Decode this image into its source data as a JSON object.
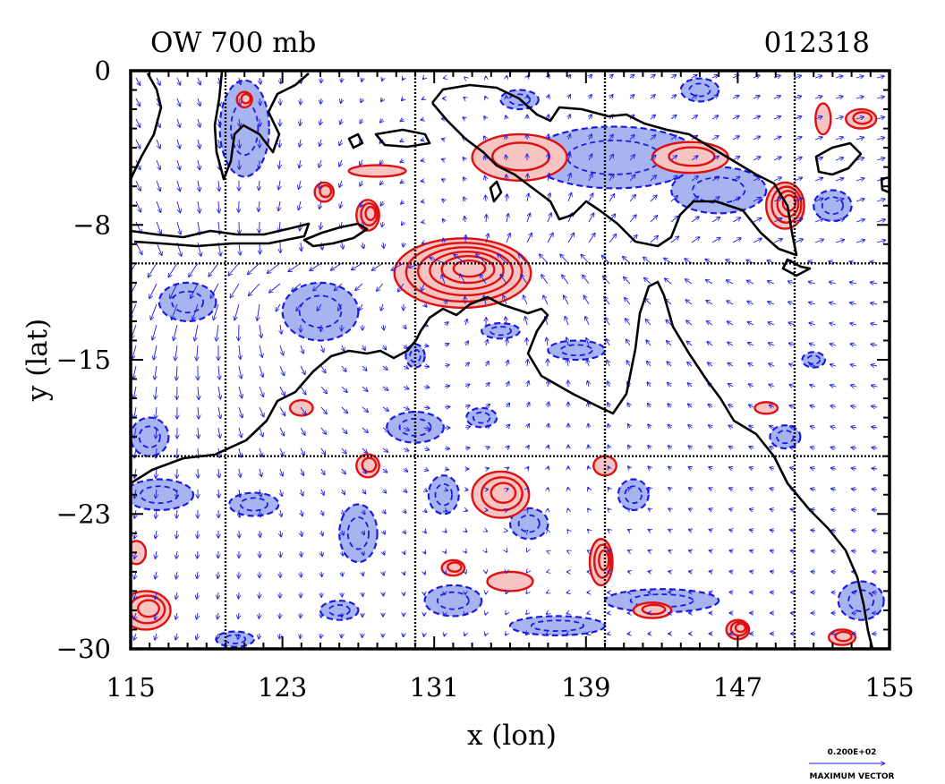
{
  "chart_data": {
    "type": "contour",
    "title": "OW 700 mb",
    "time_label": "012318",
    "xlabel": "x (lon)",
    "ylabel": "y (lat)",
    "xlim": [
      115,
      155
    ],
    "ylim": [
      -30,
      0
    ],
    "x_ticks": [
      "115",
      "123",
      "131",
      "139",
      "147",
      "155"
    ],
    "x_tick_values": [
      115,
      123,
      131,
      139,
      147,
      155
    ],
    "y_ticks": [
      "0",
      "−8",
      "−15",
      "−23",
      "−30"
    ],
    "y_tick_values": [
      0,
      -8,
      -15,
      -23,
      -30
    ],
    "grid_lon": [
      120,
      130,
      140,
      150
    ],
    "grid_lat": [
      -10,
      -20
    ],
    "grid": true,
    "vector_legend": {
      "value": "0.200E+02",
      "label": "MAXIMUM VECTOR"
    },
    "colors": {
      "positive_contour": "#e01010",
      "positive_fill": "#f7c4c4",
      "negative_contour": "#1a1ae6",
      "negative_fill": "#a8b4f0",
      "vectors": "#1a1ae6",
      "coast": "#000000"
    },
    "positive_regions": [
      {
        "lon": 132.5,
        "lat": -10.5,
        "rx": 3.6,
        "ry": 1.8,
        "rings": 6
      },
      {
        "lon": 127.5,
        "lat": -7.5,
        "rx": 0.6,
        "ry": 0.8,
        "rings": 3
      },
      {
        "lon": 125.2,
        "lat": -6.3,
        "rx": 0.5,
        "ry": 0.5,
        "rings": 2
      },
      {
        "lon": 135.5,
        "lat": -4.5,
        "rx": 2.5,
        "ry": 1.2,
        "rings": 2
      },
      {
        "lon": 144.5,
        "lat": -4.5,
        "rx": 2.0,
        "ry": 0.8,
        "rings": 2
      },
      {
        "lon": 149.5,
        "lat": -7.0,
        "rx": 1.0,
        "ry": 1.2,
        "rings": 4
      },
      {
        "lon": 153.5,
        "lat": -2.5,
        "rx": 0.8,
        "ry": 0.5,
        "rings": 2
      },
      {
        "lon": 128.0,
        "lat": -5.2,
        "rx": 1.5,
        "ry": 0.3,
        "rings": 1
      },
      {
        "lon": 121.0,
        "lat": -1.5,
        "rx": 0.4,
        "ry": 0.4,
        "rings": 2
      },
      {
        "lon": 124.0,
        "lat": -17.5,
        "rx": 0.6,
        "ry": 0.4,
        "rings": 1
      },
      {
        "lon": 127.5,
        "lat": -20.5,
        "rx": 0.6,
        "ry": 0.6,
        "rings": 2
      },
      {
        "lon": 134.5,
        "lat": -22.0,
        "rx": 1.5,
        "ry": 1.2,
        "rings": 3
      },
      {
        "lon": 139.8,
        "lat": -25.5,
        "rx": 0.6,
        "ry": 1.2,
        "rings": 3
      },
      {
        "lon": 142.5,
        "lat": -28.0,
        "rx": 1.0,
        "ry": 0.4,
        "rings": 2
      },
      {
        "lon": 140.0,
        "lat": -20.5,
        "rx": 0.6,
        "ry": 0.5,
        "rings": 1
      },
      {
        "lon": 115.8,
        "lat": -28.0,
        "rx": 1.3,
        "ry": 1.0,
        "rings": 3
      },
      {
        "lon": 115.3,
        "lat": -25.0,
        "rx": 0.5,
        "ry": 0.6,
        "rings": 1
      },
      {
        "lon": 148.5,
        "lat": -17.5,
        "rx": 0.6,
        "ry": 0.3,
        "rings": 1
      },
      {
        "lon": 135.0,
        "lat": -26.5,
        "rx": 1.2,
        "ry": 0.5,
        "rings": 1
      },
      {
        "lon": 132.0,
        "lat": -25.8,
        "rx": 0.6,
        "ry": 0.4,
        "rings": 2
      },
      {
        "lon": 147.0,
        "lat": -29.0,
        "rx": 0.6,
        "ry": 0.5,
        "rings": 3
      },
      {
        "lon": 152.5,
        "lat": -29.4,
        "rx": 0.7,
        "ry": 0.4,
        "rings": 2
      },
      {
        "lon": 151.5,
        "lat": -2.5,
        "rx": 0.4,
        "ry": 0.8,
        "rings": 1
      }
    ],
    "negative_regions": [
      {
        "lon": 140.5,
        "lat": -4.5,
        "rx": 4.5,
        "ry": 1.6
      },
      {
        "lon": 146.0,
        "lat": -6.2,
        "rx": 2.5,
        "ry": 1.2
      },
      {
        "lon": 121.0,
        "lat": -3.0,
        "rx": 1.3,
        "ry": 2.5
      },
      {
        "lon": 118.0,
        "lat": -12.0,
        "rx": 1.5,
        "ry": 1.0
      },
      {
        "lon": 125.0,
        "lat": -12.5,
        "rx": 2.0,
        "ry": 1.5
      },
      {
        "lon": 116.0,
        "lat": -19.0,
        "rx": 1.0,
        "ry": 1.0
      },
      {
        "lon": 116.5,
        "lat": -22.0,
        "rx": 1.8,
        "ry": 0.8
      },
      {
        "lon": 121.5,
        "lat": -22.5,
        "rx": 1.3,
        "ry": 0.6
      },
      {
        "lon": 127.0,
        "lat": -24.0,
        "rx": 1.0,
        "ry": 1.5
      },
      {
        "lon": 130.0,
        "lat": -18.5,
        "rx": 1.5,
        "ry": 0.8
      },
      {
        "lon": 133.5,
        "lat": -18.0,
        "rx": 0.8,
        "ry": 0.5
      },
      {
        "lon": 131.5,
        "lat": -22.0,
        "rx": 0.8,
        "ry": 1.0
      },
      {
        "lon": 136.0,
        "lat": -23.5,
        "rx": 1.0,
        "ry": 0.8
      },
      {
        "lon": 132.0,
        "lat": -27.5,
        "rx": 1.5,
        "ry": 0.8
      },
      {
        "lon": 137.5,
        "lat": -28.8,
        "rx": 2.5,
        "ry": 0.5
      },
      {
        "lon": 143.0,
        "lat": -27.5,
        "rx": 3.0,
        "ry": 0.6
      },
      {
        "lon": 141.5,
        "lat": -22.0,
        "rx": 0.8,
        "ry": 0.8
      },
      {
        "lon": 153.5,
        "lat": -27.5,
        "rx": 1.2,
        "ry": 1.0
      },
      {
        "lon": 149.5,
        "lat": -19.0,
        "rx": 0.8,
        "ry": 0.6
      },
      {
        "lon": 138.5,
        "lat": -14.5,
        "rx": 1.5,
        "ry": 0.5
      },
      {
        "lon": 134.5,
        "lat": -13.5,
        "rx": 1.0,
        "ry": 0.4
      },
      {
        "lon": 145.0,
        "lat": -1.0,
        "rx": 1.0,
        "ry": 0.6
      },
      {
        "lon": 152.0,
        "lat": -7.0,
        "rx": 1.0,
        "ry": 0.8
      },
      {
        "lon": 130.0,
        "lat": -14.8,
        "rx": 0.5,
        "ry": 0.6
      },
      {
        "lon": 120.5,
        "lat": -29.5,
        "rx": 1.0,
        "ry": 0.4
      },
      {
        "lon": 126.0,
        "lat": -28.0,
        "rx": 1.0,
        "ry": 0.5
      },
      {
        "lon": 135.5,
        "lat": -1.5,
        "rx": 1.0,
        "ry": 0.5
      },
      {
        "lon": 151.0,
        "lat": -15.0,
        "rx": 0.6,
        "ry": 0.4
      }
    ]
  }
}
